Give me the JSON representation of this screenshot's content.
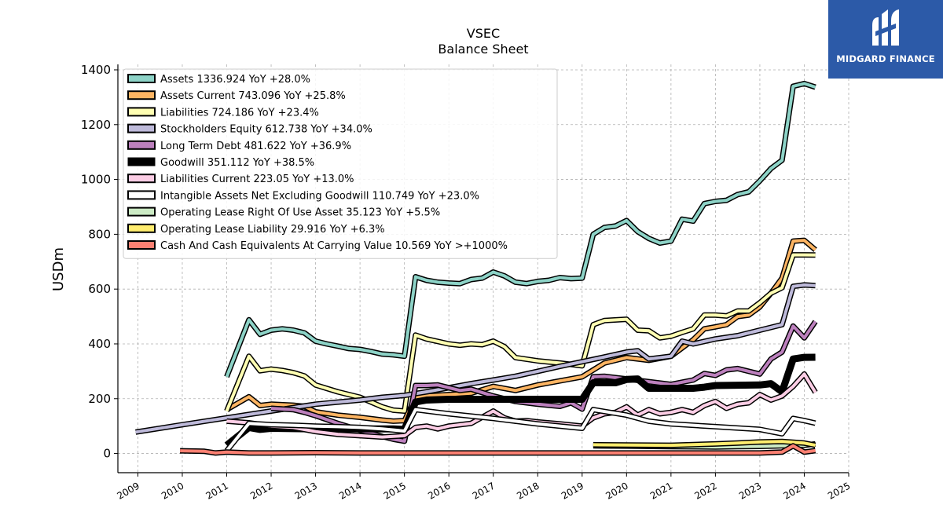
{
  "brand": {
    "name": "MIDGARD FINANCE"
  },
  "chart_data": {
    "type": "line",
    "title": "VSEC",
    "subtitle": "Balance  Sheet",
    "ylabel": "USDm",
    "xlabel": "",
    "xlim": [
      2008.55,
      2025.0
    ],
    "ylim": [
      -70,
      1420
    ],
    "xticks": [
      2009,
      2010,
      2011,
      2012,
      2013,
      2014,
      2015,
      2016,
      2017,
      2018,
      2019,
      2020,
      2021,
      2022,
      2023,
      2024,
      2025
    ],
    "yticks": [
      0,
      200,
      400,
      600,
      800,
      1000,
      1200,
      1400
    ],
    "grid": true,
    "legend_position": "upper-left",
    "series": [
      {
        "name": "Assets",
        "legend": "Assets  1336.924 YoY +28.0%",
        "color": "#8dd3c7",
        "x": [
          2011.0,
          2011.5,
          2011.75,
          2012.0,
          2012.25,
          2012.5,
          2012.75,
          2013.0,
          2013.25,
          2013.5,
          2013.75,
          2014.0,
          2014.25,
          2014.5,
          2014.75,
          2015.0,
          2015.25,
          2015.5,
          2015.75,
          2016.0,
          2016.25,
          2016.5,
          2016.75,
          2017.0,
          2017.25,
          2017.5,
          2017.75,
          2018.0,
          2018.25,
          2018.5,
          2018.75,
          2019.0,
          2019.25,
          2019.5,
          2019.75,
          2020.0,
          2020.25,
          2020.5,
          2020.75,
          2021.0,
          2021.25,
          2021.5,
          2021.75,
          2022.0,
          2022.25,
          2022.5,
          2022.75,
          2023.0,
          2023.25,
          2023.5,
          2023.75,
          2024.0,
          2024.25
        ],
        "y": [
          280,
          488,
          435,
          450,
          455,
          450,
          440,
          410,
          400,
          392,
          383,
          380,
          372,
          363,
          360,
          355,
          645,
          632,
          625,
          622,
          620,
          635,
          640,
          662,
          648,
          625,
          620,
          628,
          632,
          642,
          638,
          640,
          800,
          825,
          830,
          850,
          810,
          785,
          768,
          775,
          855,
          848,
          912,
          920,
          924,
          945,
          955,
          995,
          1040,
          1070,
          1340,
          1350,
          1336.924
        ]
      },
      {
        "name": "Assets Current",
        "legend": "Assets Current  743.096 YoY +25.8%",
        "color": "#fdb462",
        "x": [
          2011.0,
          2011.5,
          2011.75,
          2012.0,
          2012.5,
          2012.75,
          2013.0,
          2013.5,
          2014.0,
          2014.5,
          2014.75,
          2015.0,
          2015.25,
          2015.5,
          2016.0,
          2016.5,
          2017.0,
          2017.5,
          2018.0,
          2018.5,
          2019.0,
          2019.5,
          2020.0,
          2020.5,
          2021.0,
          2021.5,
          2021.75,
          2022.0,
          2022.25,
          2022.5,
          2022.75,
          2023.0,
          2023.25,
          2023.5,
          2023.75,
          2024.0,
          2024.25
        ],
        "y": [
          160,
          207,
          175,
          180,
          176,
          172,
          152,
          140,
          132,
          122,
          118,
          120,
          205,
          210,
          215,
          220,
          245,
          230,
          250,
          265,
          280,
          330,
          350,
          340,
          355,
          415,
          455,
          462,
          470,
          500,
          505,
          535,
          585,
          640,
          775,
          778,
          743.096
        ]
      },
      {
        "name": "Liabilities",
        "legend": "Liabilities  724.186 YoY +23.4%",
        "color": "#ffffb3",
        "x": [
          2011.0,
          2011.5,
          2011.75,
          2012.0,
          2012.25,
          2012.5,
          2012.75,
          2013.0,
          2013.5,
          2014.0,
          2014.5,
          2014.75,
          2015.0,
          2015.25,
          2015.5,
          2016.0,
          2016.25,
          2016.5,
          2016.75,
          2017.0,
          2017.25,
          2017.5,
          2018.0,
          2018.5,
          2019.0,
          2019.25,
          2019.5,
          2020.0,
          2020.25,
          2020.5,
          2020.75,
          2021.0,
          2021.25,
          2021.5,
          2021.75,
          2022.0,
          2022.25,
          2022.5,
          2022.75,
          2023.0,
          2023.25,
          2023.5,
          2023.75,
          2024.0,
          2024.25
        ],
        "y": [
          155,
          355,
          302,
          308,
          303,
          295,
          283,
          250,
          225,
          205,
          170,
          158,
          155,
          432,
          418,
          400,
          395,
          400,
          397,
          410,
          390,
          350,
          338,
          330,
          320,
          470,
          485,
          490,
          450,
          448,
          422,
          428,
          442,
          455,
          505,
          505,
          502,
          520,
          520,
          550,
          585,
          605,
          725,
          725,
          724.186
        ]
      },
      {
        "name": "Stockholders Equity",
        "legend": "Stockholders Equity  612.738 YoY +34.0%",
        "color": "#bebada",
        "x": [
          2008.95,
          2010.0,
          2011.0,
          2012.0,
          2013.0,
          2014.0,
          2014.5,
          2015.0,
          2015.5,
          2016.0,
          2016.5,
          2017.0,
          2017.5,
          2018.0,
          2018.5,
          2019.0,
          2019.5,
          2020.0,
          2020.25,
          2020.5,
          2021.0,
          2021.25,
          2021.5,
          2022.0,
          2022.5,
          2023.0,
          2023.5,
          2023.75,
          2024.0,
          2024.25
        ],
        "y": [
          78,
          105,
          130,
          155,
          180,
          195,
          205,
          212,
          225,
          240,
          255,
          268,
          282,
          300,
          318,
          335,
          352,
          370,
          375,
          345,
          355,
          410,
          400,
          418,
          430,
          450,
          470,
          610,
          615,
          612.738
        ]
      },
      {
        "name": "Long Term Debt",
        "legend": "Long Term Debt  481.622 YoY +36.9%",
        "color": "#bc80bd",
        "x": [
          2012.0,
          2012.5,
          2012.75,
          2013.0,
          2013.5,
          2014.0,
          2014.5,
          2014.75,
          2015.0,
          2015.25,
          2015.5,
          2015.75,
          2016.0,
          2016.25,
          2016.5,
          2017.0,
          2017.5,
          2018.0,
          2018.5,
          2018.75,
          2019.0,
          2019.25,
          2019.5,
          2020.0,
          2020.5,
          2021.0,
          2021.5,
          2021.75,
          2022.0,
          2022.25,
          2022.5,
          2022.75,
          2023.0,
          2023.25,
          2023.5,
          2023.75,
          2024.0,
          2024.25
        ],
        "y": [
          165,
          160,
          150,
          138,
          110,
          85,
          62,
          52,
          45,
          248,
          248,
          250,
          240,
          230,
          235,
          210,
          190,
          180,
          172,
          185,
          162,
          280,
          282,
          272,
          262,
          252,
          268,
          292,
          285,
          305,
          310,
          300,
          290,
          345,
          370,
          465,
          422,
          481.622
        ]
      },
      {
        "name": "Goodwill",
        "legend": "Goodwill  351.112 YoY +38.5%",
        "color": "#000000",
        "x": [
          2011.0,
          2011.5,
          2011.75,
          2012.0,
          2013.0,
          2014.0,
          2014.75,
          2015.0,
          2015.25,
          2015.5,
          2016.0,
          2017.0,
          2018.0,
          2019.0,
          2019.25,
          2019.75,
          2020.0,
          2020.25,
          2020.5,
          2021.0,
          2021.5,
          2021.75,
          2022.0,
          2023.0,
          2023.25,
          2023.5,
          2023.75,
          2024.0,
          2024.25
        ],
        "y": [
          30,
          95,
          88,
          92,
          90,
          90,
          90,
          88,
          188,
          195,
          198,
          198,
          198,
          198,
          258,
          258,
          270,
          272,
          238,
          238,
          238,
          242,
          248,
          250,
          255,
          225,
          345,
          351,
          351.112
        ]
      },
      {
        "name": "Liabilities Current",
        "legend": "Liabilities Current  223.05 YoY +13.0%",
        "color": "#fccde5",
        "x": [
          2011.0,
          2011.5,
          2012.0,
          2012.5,
          2013.0,
          2013.5,
          2014.0,
          2014.5,
          2015.0,
          2015.25,
          2015.5,
          2015.75,
          2016.0,
          2016.5,
          2017.0,
          2017.25,
          2017.5,
          2017.75,
          2018.0,
          2018.5,
          2019.0,
          2019.25,
          2019.5,
          2019.75,
          2020.0,
          2020.25,
          2020.5,
          2020.75,
          2021.0,
          2021.25,
          2021.5,
          2021.75,
          2022.0,
          2022.25,
          2022.5,
          2022.75,
          2023.0,
          2023.25,
          2023.5,
          2023.75,
          2024.0,
          2024.25
        ],
        "y": [
          118,
          112,
          100,
          95,
          80,
          70,
          65,
          60,
          65,
          95,
          100,
          90,
          100,
          110,
          155,
          130,
          118,
          120,
          115,
          108,
          100,
          130,
          145,
          150,
          170,
          140,
          160,
          145,
          150,
          160,
          150,
          175,
          190,
          165,
          180,
          185,
          215,
          195,
          210,
          245,
          290,
          223.05
        ]
      },
      {
        "name": "Intangible Assets Net Excluding Goodwill",
        "legend": "Intangible Assets Net Excluding Goodwill  110.749 YoY +23.0%",
        "color": "#ffffff",
        "x": [
          2011.0,
          2011.5,
          2012.0,
          2012.5,
          2013.0,
          2013.5,
          2014.0,
          2014.5,
          2015.0,
          2015.25,
          2016.0,
          2017.0,
          2018.0,
          2019.0,
          2019.25,
          2020.0,
          2020.5,
          2021.0,
          2022.0,
          2023.0,
          2023.5,
          2023.75,
          2024.0,
          2024.25
        ],
        "y": [
          10,
          110,
          105,
          103,
          100,
          98,
          95,
          90,
          82,
          160,
          145,
          128,
          108,
          92,
          160,
          140,
          118,
          108,
          98,
          88,
          72,
          128,
          120,
          110.749
        ]
      },
      {
        "name": "Operating Lease Right Of Use Asset",
        "legend": "Operating Lease Right Of Use Asset  35.123 YoY +5.5%",
        "color": "#ccebc5",
        "x": [
          2019.25,
          2020.0,
          2021.0,
          2022.0,
          2022.5,
          2023.0,
          2023.5,
          2024.0,
          2024.25
        ],
        "y": [
          28,
          27,
          25,
          24,
          25,
          26,
          28,
          30,
          35.123
        ]
      },
      {
        "name": "Operating Lease Liability",
        "legend": "Operating Lease Liability  29.916 YoY +6.3%",
        "color": "#ffed6f",
        "x": [
          2019.25,
          2020.0,
          2021.0,
          2022.0,
          2022.5,
          2023.0,
          2023.5,
          2024.0,
          2024.25
        ],
        "y": [
          32,
          31,
          30,
          35,
          38,
          42,
          44,
          38,
          29.916
        ]
      },
      {
        "name": "Cash And Cash Equivalents At Carrying Value",
        "legend": "Cash And Cash Equivalents At Carrying Value  10.569 YoY >+1000%",
        "color": "#fb8072",
        "x": [
          2009.95,
          2010.5,
          2010.75,
          2011.0,
          2011.5,
          2012.0,
          2013.0,
          2014.0,
          2015.0,
          2016.0,
          2017.0,
          2018.0,
          2019.0,
          2020.0,
          2021.0,
          2022.0,
          2023.0,
          2023.5,
          2023.75,
          2024.0,
          2024.25
        ],
        "y": [
          10,
          8,
          2,
          5,
          2,
          2,
          3,
          2,
          2,
          2,
          2,
          2,
          2,
          2,
          2,
          2,
          2,
          5,
          28,
          5,
          10.569
        ]
      }
    ]
  }
}
